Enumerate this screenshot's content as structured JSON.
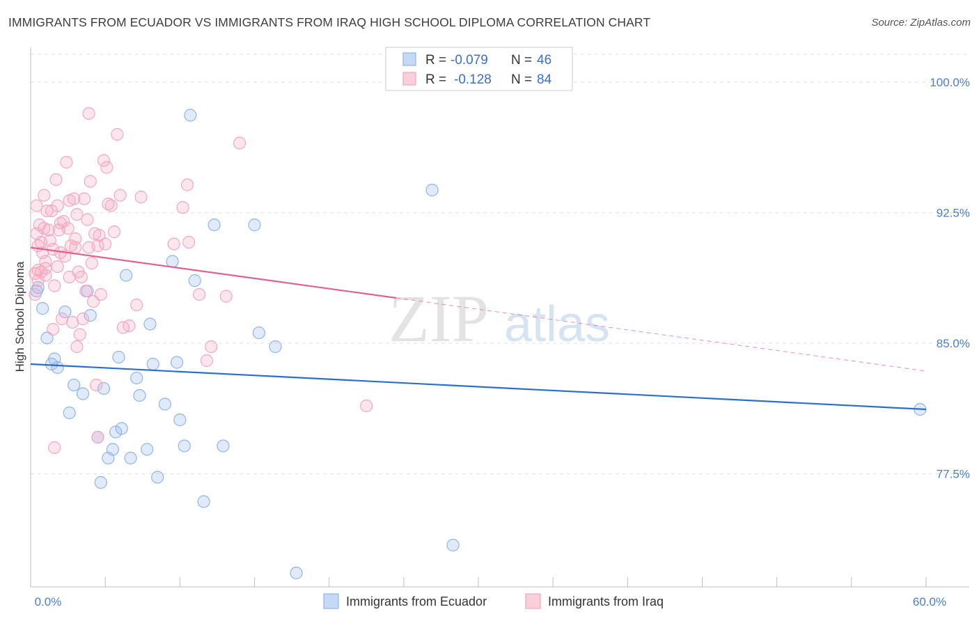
{
  "title": "IMMIGRANTS FROM ECUADOR VS IMMIGRANTS FROM IRAQ HIGH SCHOOL DIPLOMA CORRELATION CHART",
  "source": "Source: ZipAtlas.com",
  "watermark": {
    "zip": "ZIP",
    "atlas": "atlas"
  },
  "chart_data": {
    "type": "scatter",
    "xlabel": "",
    "ylabel": "High School Diploma",
    "xlim": [
      0,
      60
    ],
    "ylim": [
      71.0,
      102.0
    ],
    "x_tick_labels": [
      {
        "value": 0,
        "label": "0.0%"
      },
      {
        "value": 60,
        "label": "60.0%"
      }
    ],
    "y_tick_labels": [
      {
        "value": 100.0,
        "label": "100.0%"
      },
      {
        "value": 92.5,
        "label": "92.5%"
      },
      {
        "value": 85.0,
        "label": "85.0%"
      },
      {
        "value": 77.5,
        "label": "77.5%"
      }
    ],
    "grid": true,
    "legend": {
      "position": "top-center",
      "entries": [
        {
          "r_label": "R =",
          "r_value": "-0.079",
          "n_label": "N =",
          "n_value": "46",
          "color": "#8fb5e8"
        },
        {
          "r_label": "R =",
          "r_value": "-0.128",
          "n_label": "N =",
          "n_value": "84",
          "color": "#f4a7bf"
        }
      ]
    },
    "series": [
      {
        "name": "Immigrants from Ecuador",
        "color": "#8fb5e8",
        "line_color": "#2a6fcc",
        "trend": {
          "x0": 0,
          "y0": 83.8,
          "x1": 60,
          "y1": 81.2,
          "solid_until": 60
        },
        "points": [
          [
            0.4,
            88.0
          ],
          [
            0.5,
            88.2
          ],
          [
            0.8,
            87.0
          ],
          [
            1.1,
            85.3
          ],
          [
            1.4,
            83.8
          ],
          [
            1.6,
            84.1
          ],
          [
            1.8,
            83.6
          ],
          [
            2.3,
            86.8
          ],
          [
            2.6,
            81.0
          ],
          [
            2.9,
            82.6
          ],
          [
            3.5,
            82.1
          ],
          [
            3.8,
            88.0
          ],
          [
            4.0,
            86.6
          ],
          [
            4.5,
            79.6
          ],
          [
            4.7,
            77.0
          ],
          [
            4.9,
            82.4
          ],
          [
            5.2,
            78.4
          ],
          [
            5.5,
            78.9
          ],
          [
            5.7,
            79.9
          ],
          [
            5.9,
            84.2
          ],
          [
            6.1,
            80.1
          ],
          [
            6.4,
            88.9
          ],
          [
            6.7,
            78.4
          ],
          [
            7.1,
            83.0
          ],
          [
            7.3,
            82.0
          ],
          [
            7.8,
            78.9
          ],
          [
            8.0,
            86.1
          ],
          [
            8.2,
            83.8
          ],
          [
            8.5,
            77.3
          ],
          [
            9.0,
            81.5
          ],
          [
            9.5,
            89.7
          ],
          [
            9.8,
            83.9
          ],
          [
            10.0,
            80.6
          ],
          [
            10.3,
            79.1
          ],
          [
            10.7,
            98.1
          ],
          [
            11.0,
            88.6
          ],
          [
            11.6,
            75.9
          ],
          [
            12.3,
            91.8
          ],
          [
            12.9,
            79.1
          ],
          [
            15.0,
            91.8
          ],
          [
            15.3,
            85.6
          ],
          [
            16.4,
            84.8
          ],
          [
            17.8,
            71.8
          ],
          [
            26.9,
            93.8
          ],
          [
            28.3,
            73.4
          ],
          [
            59.6,
            81.2
          ]
        ]
      },
      {
        "name": "Immigrants from Iraq",
        "color": "#f4a7bf",
        "line_color": "#e0628e",
        "trend": {
          "x0": 0,
          "y0": 90.5,
          "x1": 60,
          "y1": 83.4,
          "solid_until": 24.5
        },
        "points": [
          [
            0.3,
            89.0
          ],
          [
            0.3,
            87.8
          ],
          [
            0.4,
            91.3
          ],
          [
            0.4,
            92.9
          ],
          [
            0.5,
            90.6
          ],
          [
            0.5,
            88.6
          ],
          [
            0.6,
            91.8
          ],
          [
            0.7,
            89.1
          ],
          [
            0.8,
            90.2
          ],
          [
            0.9,
            93.5
          ],
          [
            0.9,
            91.6
          ],
          [
            1.0,
            89.3
          ],
          [
            1.0,
            88.9
          ],
          [
            1.1,
            92.6
          ],
          [
            1.2,
            91.5
          ],
          [
            1.3,
            90.9
          ],
          [
            1.4,
            92.6
          ],
          [
            1.5,
            90.4
          ],
          [
            1.5,
            85.8
          ],
          [
            1.6,
            88.3
          ],
          [
            1.7,
            94.4
          ],
          [
            1.8,
            92.9
          ],
          [
            1.9,
            91.5
          ],
          [
            2.0,
            90.2
          ],
          [
            2.1,
            86.4
          ],
          [
            2.2,
            92.0
          ],
          [
            2.3,
            90.0
          ],
          [
            2.4,
            95.4
          ],
          [
            2.5,
            91.6
          ],
          [
            2.6,
            88.8
          ],
          [
            2.7,
            90.6
          ],
          [
            2.8,
            86.2
          ],
          [
            2.9,
            93.3
          ],
          [
            3.0,
            91.0
          ],
          [
            3.1,
            92.4
          ],
          [
            3.1,
            84.8
          ],
          [
            3.2,
            89.1
          ],
          [
            3.3,
            85.5
          ],
          [
            3.4,
            88.8
          ],
          [
            3.5,
            86.4
          ],
          [
            3.6,
            93.3
          ],
          [
            3.7,
            88.0
          ],
          [
            3.8,
            92.1
          ],
          [
            3.9,
            98.2
          ],
          [
            4.0,
            94.3
          ],
          [
            4.1,
            89.6
          ],
          [
            4.2,
            87.4
          ],
          [
            4.3,
            91.3
          ],
          [
            4.4,
            82.6
          ],
          [
            4.5,
            90.6
          ],
          [
            4.6,
            91.2
          ],
          [
            4.7,
            87.8
          ],
          [
            4.9,
            95.5
          ],
          [
            5.0,
            90.7
          ],
          [
            5.1,
            95.1
          ],
          [
            5.2,
            93.0
          ],
          [
            5.4,
            92.9
          ],
          [
            5.6,
            91.4
          ],
          [
            5.8,
            97.0
          ],
          [
            6.0,
            93.5
          ],
          [
            6.2,
            85.9
          ],
          [
            6.6,
            86.0
          ],
          [
            7.1,
            87.2
          ],
          [
            7.4,
            93.4
          ],
          [
            9.6,
            90.7
          ],
          [
            10.2,
            92.8
          ],
          [
            10.5,
            94.1
          ],
          [
            10.6,
            90.8
          ],
          [
            11.3,
            87.8
          ],
          [
            11.8,
            84.0
          ],
          [
            12.1,
            84.8
          ],
          [
            13.1,
            87.7
          ],
          [
            14.0,
            96.5
          ],
          [
            22.5,
            81.4
          ],
          [
            1.6,
            79.0
          ],
          [
            4.5,
            79.6
          ],
          [
            0.5,
            89.2
          ],
          [
            1.0,
            89.7
          ],
          [
            2.0,
            91.9
          ],
          [
            3.0,
            90.5
          ],
          [
            0.7,
            90.8
          ],
          [
            1.8,
            89.4
          ],
          [
            2.6,
            93.2
          ],
          [
            3.9,
            90.5
          ]
        ]
      }
    ]
  }
}
